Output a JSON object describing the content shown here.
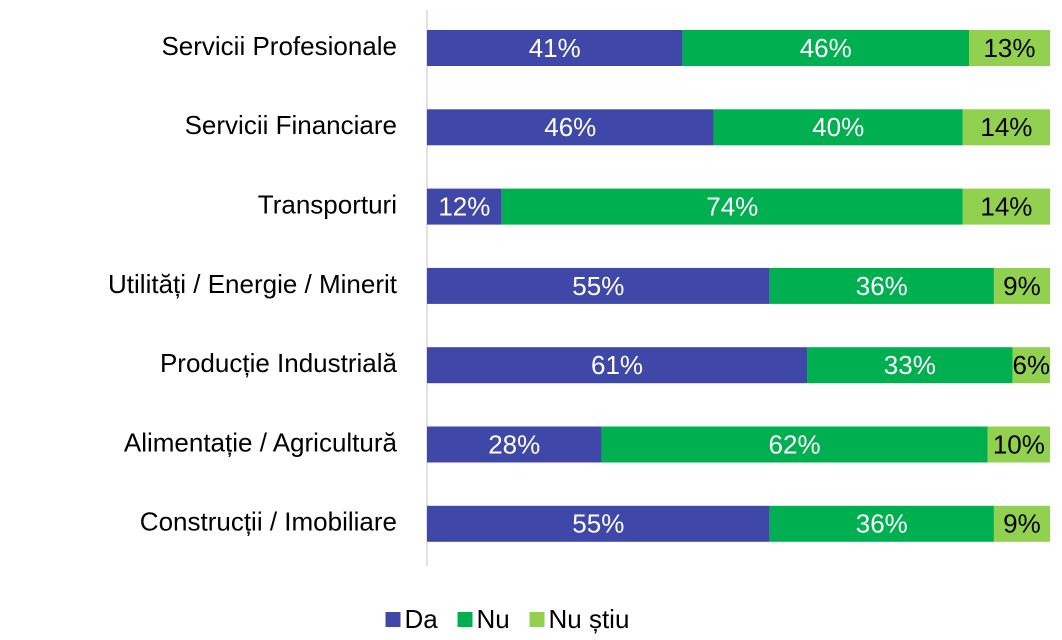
{
  "chart_data": {
    "type": "stacked_barh",
    "categories": [
      "Servicii Profesionale",
      "Servicii Financiare",
      "Transporturi",
      "Utilități / Energie / Minerit",
      "Producție Industrială",
      "Alimentație / Agricultură",
      "Construcții / Imobiliare"
    ],
    "series": [
      {
        "name": "Da",
        "color": "#3f48a8",
        "values": [
          41,
          46,
          12,
          55,
          61,
          28,
          55
        ],
        "value_labels": [
          "41%",
          "46%",
          "12%",
          "55%",
          "61%",
          "28%",
          "55%"
        ]
      },
      {
        "name": "Nu",
        "color": "#00b050",
        "values": [
          46,
          40,
          74,
          36,
          33,
          62,
          36
        ],
        "value_labels": [
          "46%",
          "40%",
          "74%",
          "36%",
          "33%",
          "62%",
          "36%"
        ]
      },
      {
        "name": "Nu știu",
        "color": "#92d050",
        "values": [
          13,
          14,
          14,
          9,
          6,
          10,
          9
        ],
        "value_labels": [
          "13%",
          "14%",
          "14%",
          "9%",
          "6%",
          "10%",
          "9%"
        ]
      }
    ],
    "xlim": [
      0,
      100
    ],
    "legend": "bottom"
  }
}
